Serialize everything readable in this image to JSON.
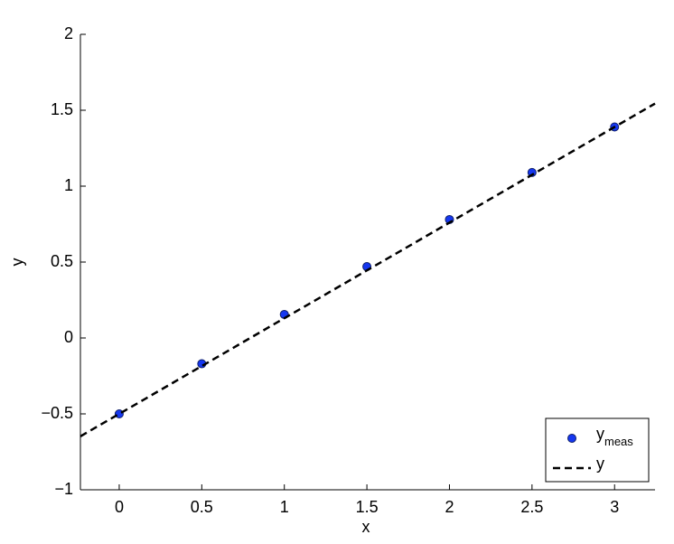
{
  "chart_data": {
    "type": "line",
    "xlabel": "x",
    "ylabel": "y",
    "xlim": [
      -0.235,
      3.245
    ],
    "ylim": [
      -1,
      2
    ],
    "xticks": [
      0,
      0.5,
      1,
      1.5,
      2,
      2.5,
      3
    ],
    "yticks": [
      {
        "value": -1,
        "label": "−1"
      },
      {
        "value": -0.5,
        "label": "−0.5"
      },
      0,
      0.5,
      1,
      1.5,
      2
    ],
    "legend": "lower right",
    "series": [
      {
        "name": "y",
        "name_sub": "meas",
        "color": "#1537f0",
        "style": "markers",
        "x": [
          0,
          0.5,
          1,
          1.5,
          2,
          2.5,
          3
        ],
        "values": [
          -0.5,
          -0.17,
          0.155,
          0.47,
          0.78,
          1.09,
          1.39
        ]
      },
      {
        "name": "y",
        "color": "#000000",
        "style": "dashed",
        "x": [
          -0.235,
          3.245
        ],
        "values": [
          -0.648,
          1.544
        ]
      }
    ]
  }
}
